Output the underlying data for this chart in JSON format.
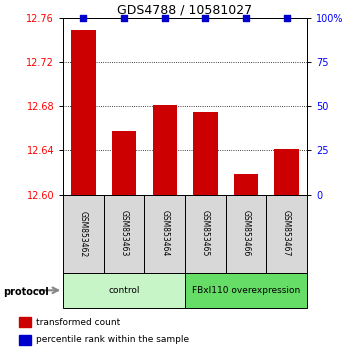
{
  "title": "GDS4788 / 10581027",
  "samples": [
    "GSM853462",
    "GSM853463",
    "GSM853464",
    "GSM853465",
    "GSM853466",
    "GSM853467"
  ],
  "red_values": [
    12.749,
    12.658,
    12.681,
    12.675,
    12.619,
    12.641
  ],
  "blue_values": [
    100,
    100,
    100,
    100,
    100,
    100
  ],
  "ylim_left": [
    12.6,
    12.76
  ],
  "ylim_right": [
    0,
    100
  ],
  "yticks_left": [
    12.6,
    12.64,
    12.68,
    12.72,
    12.76
  ],
  "yticks_right": [
    0,
    25,
    50,
    75,
    100
  ],
  "ytick_labels_right": [
    "0",
    "25",
    "50",
    "75",
    "100%"
  ],
  "groups": [
    {
      "label": "control",
      "indices": [
        0,
        1,
        2
      ],
      "color": "#c8f5c8"
    },
    {
      "label": "FBxl110 overexpression",
      "indices": [
        3,
        4,
        5
      ],
      "color": "#66dd66"
    }
  ],
  "protocol_label": "protocol",
  "bar_color_red": "#cc0000",
  "marker_color_blue": "#0000cc",
  "sample_bg_color": "#d8d8d8",
  "legend_red_label": "transformed count",
  "legend_blue_label": "percentile rank within the sample",
  "bar_width": 0.6
}
